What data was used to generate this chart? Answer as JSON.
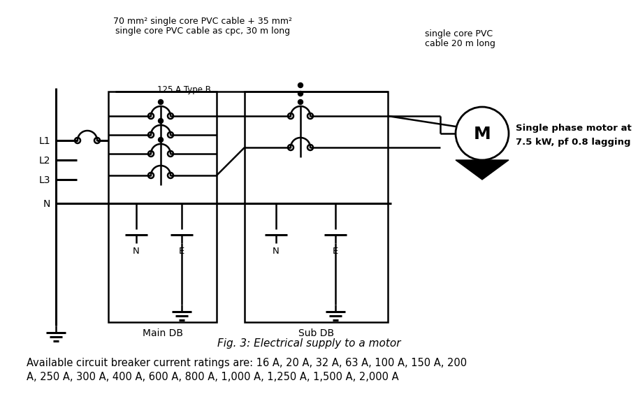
{
  "bg_color": "#ffffff",
  "lc": "#000000",
  "fig_caption": "Fig. 3: Electrical supply to a motor",
  "bottom_line1": "Available circuit breaker current ratings are: 16 A, 20 A, 32 A, 63 A, 100 A, 150 A, 200",
  "bottom_line2": "A, 250 A, 300 A, 400 A, 600 A, 800 A, 1,000 A, 1,250 A, 1,500 A, 2,000 A",
  "cable_top1": "70 mm² single core PVC cable + 35 mm²",
  "cable_top2": "single core PVC cable as cpc, 30 m long",
  "cable_right1": "single core PVC",
  "cable_right2": "cable 20 m long",
  "motor_desc1": "Single phase motor at",
  "motor_desc2": "7.5 kW, pf 0.8 lagging",
  "label_125A": "125 A Type B",
  "label_M": "M",
  "label_L1": "L1",
  "label_L2": "L2",
  "label_L3": "L3",
  "label_N_bus": "N",
  "label_MainDB": "Main DB",
  "label_SubDB": "Sub DB",
  "label_N1": "N",
  "label_E1": "E",
  "label_N2": "N",
  "label_E2": "E"
}
